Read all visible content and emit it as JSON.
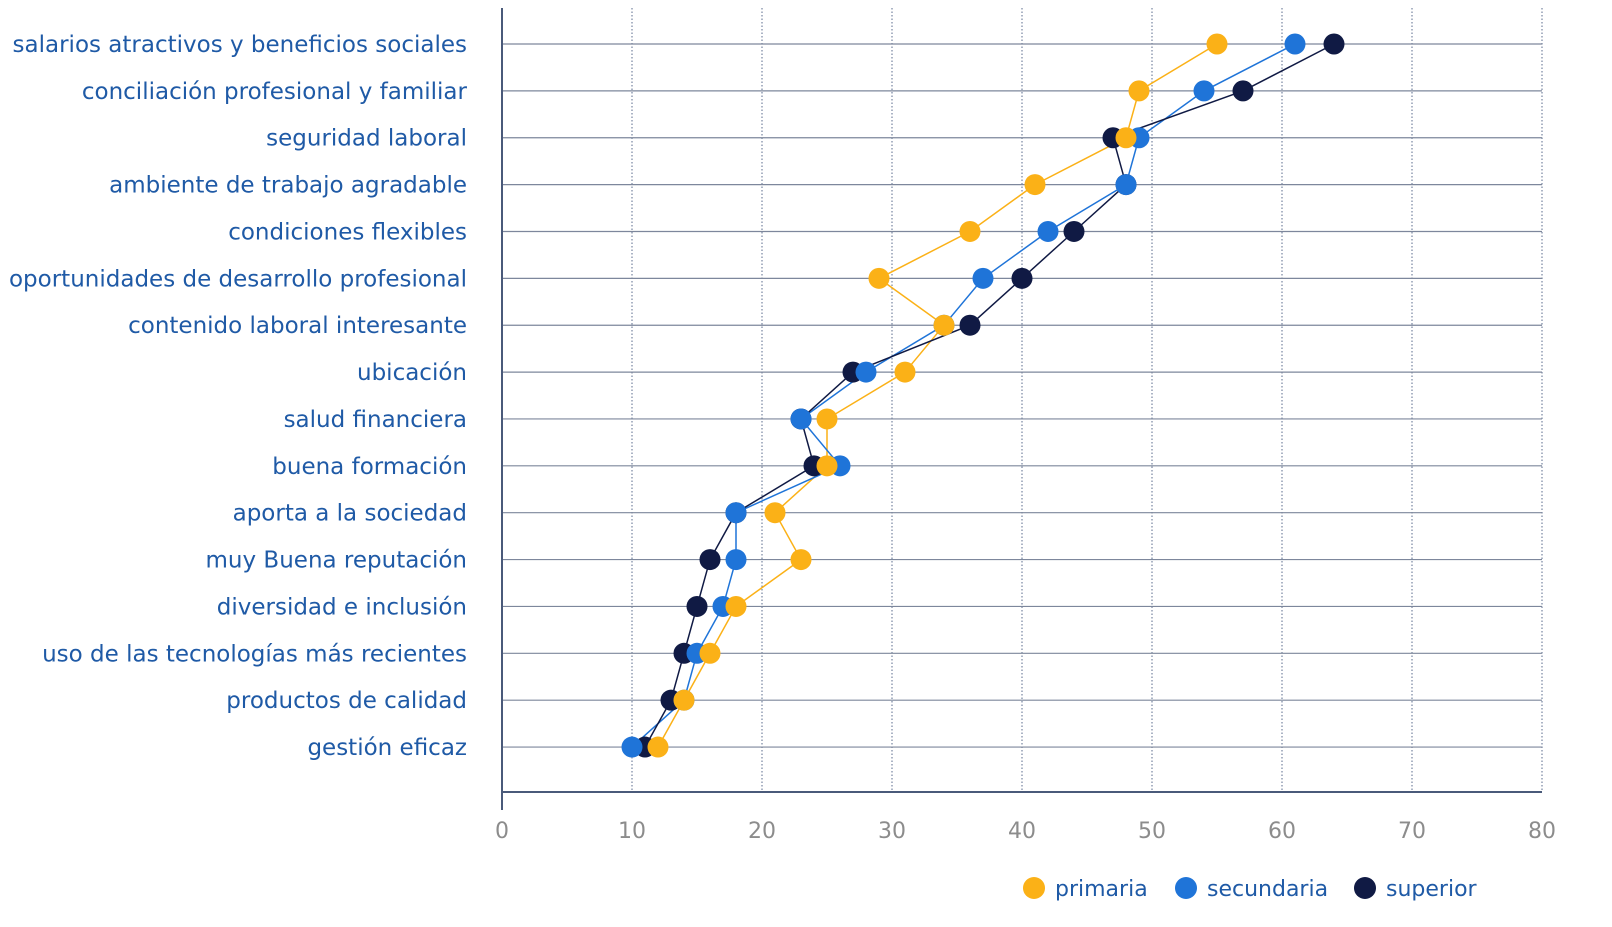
{
  "chart_data": {
    "type": "scatter",
    "orientation": "horizontal-dot",
    "categories": [
      "salarios atractivos y beneficios sociales",
      "conciliación profesional y familiar",
      "seguridad laboral",
      "ambiente de trabajo agradable",
      "condiciones flexibles",
      "oportunidades de desarrollo profesional",
      "contenido laboral interesante",
      "ubicación",
      "salud financiera",
      "buena formación",
      "aporta a la sociedad",
      "muy Buena reputación",
      "diversidad e inclusión",
      "uso de las tecnologías más recientes",
      "productos de calidad",
      "gestión eficaz"
    ],
    "series": [
      {
        "name": "primaria",
        "color": "#fbb117",
        "values": [
          55,
          49,
          48,
          41,
          36,
          29,
          34,
          31,
          25,
          25,
          21,
          23,
          18,
          16,
          14,
          12
        ]
      },
      {
        "name": "secundaria",
        "color": "#1f74d8",
        "values": [
          61,
          54,
          49,
          48,
          42,
          37,
          34,
          28,
          23,
          26,
          18,
          18,
          17,
          15,
          14,
          10
        ]
      },
      {
        "name": "superior",
        "color": "#101a44",
        "values": [
          64,
          57,
          47,
          48,
          44,
          40,
          36,
          27,
          23,
          24,
          18,
          16,
          15,
          14,
          13,
          11
        ]
      }
    ],
    "xlim": [
      0,
      80
    ],
    "xticks": [
      "0",
      "10",
      "20",
      "30",
      "40",
      "50",
      "60",
      "70",
      "80"
    ],
    "xlabel": "",
    "ylabel": "",
    "grid": true,
    "legend": "bottom-right"
  }
}
